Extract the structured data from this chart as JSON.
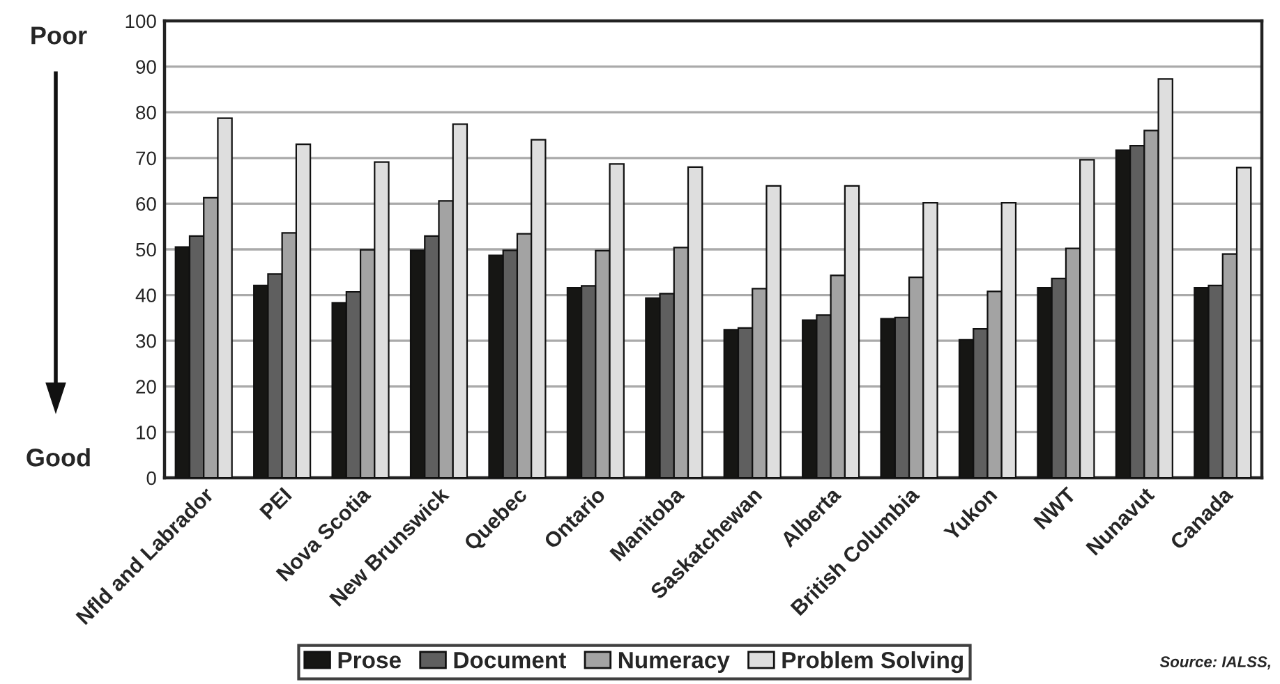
{
  "chart_data": {
    "type": "bar",
    "categories": [
      "Nfld and Labrador",
      "PEI",
      "Nova Scotia",
      "New Brunswick",
      "Quebec",
      "Ontario",
      "Manitoba",
      "Saskatchewan",
      "Alberta",
      "British Columbia",
      "Yukon",
      "NWT",
      "Nunavut",
      "Canada"
    ],
    "series": [
      {
        "name": "Prose",
        "color": "#161614",
        "values": [
          50.5,
          42.1,
          38.3,
          49.8,
          48.7,
          41.6,
          39.3,
          32.4,
          34.5,
          34.8,
          30.2,
          41.6,
          71.7,
          41.6
        ]
      },
      {
        "name": "Document",
        "color": "#5f5f5f",
        "values": [
          52.9,
          44.6,
          40.7,
          52.9,
          49.8,
          42.0,
          40.3,
          32.8,
          35.6,
          35.1,
          32.6,
          43.6,
          72.7,
          42.1
        ]
      },
      {
        "name": "Numeracy",
        "color": "#a3a3a3",
        "values": [
          61.3,
          53.6,
          49.9,
          60.6,
          53.4,
          49.7,
          50.4,
          41.4,
          44.3,
          43.9,
          40.8,
          50.2,
          76.0,
          49.0
        ]
      },
      {
        "name": "Problem Solving",
        "color": "#dedede",
        "values": [
          78.7,
          73.0,
          69.1,
          77.4,
          74.0,
          68.7,
          68.0,
          63.9,
          63.9,
          60.2,
          60.2,
          69.6,
          87.3,
          67.9
        ]
      }
    ],
    "ylim": [
      0,
      100
    ],
    "yticks": [
      0,
      10,
      20,
      30,
      40,
      50,
      60,
      70,
      80,
      90,
      100
    ],
    "grid": "y",
    "legend": "bottom",
    "annotations": [
      "Poor",
      "Good",
      "Source: IALSS,"
    ]
  }
}
